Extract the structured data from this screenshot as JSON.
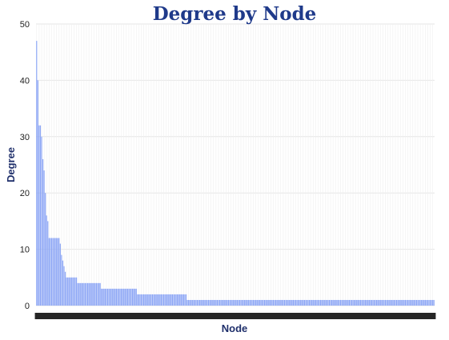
{
  "chart_data": {
    "type": "bar",
    "title": "Degree by Node",
    "xlabel": "Node",
    "ylabel": "Degree",
    "ylim": [
      0,
      50
    ],
    "yticks": [
      0,
      10,
      20,
      30,
      40,
      50
    ],
    "grid": true,
    "legend": "none",
    "bar_color": "#8fa8f5",
    "title_color": "#1f3a8a",
    "axis_label_color": "#1f2f6b",
    "x_ticks_illegible": true,
    "series": [
      {
        "values": [
          47,
          40,
          32,
          32,
          30,
          26,
          24,
          20,
          16,
          15,
          12,
          12,
          12,
          12,
          12,
          12,
          12,
          12,
          12,
          11,
          9,
          8,
          7,
          6,
          5,
          5,
          5,
          5,
          5,
          5,
          5,
          5,
          5,
          4,
          4,
          4,
          4,
          4,
          4,
          4,
          4,
          4,
          4,
          4,
          4,
          4,
          4,
          4,
          4,
          4,
          4,
          4,
          3,
          3,
          3,
          3,
          3,
          3,
          3,
          3,
          3,
          3,
          3,
          3,
          3,
          3,
          3,
          3,
          3,
          3,
          3,
          3,
          3,
          3,
          3,
          3,
          3,
          3,
          3,
          3,
          3,
          2,
          2,
          2,
          2,
          2,
          2,
          2,
          2,
          2,
          2,
          2,
          2,
          2,
          2,
          2,
          2,
          2,
          2,
          2,
          2,
          2,
          2,
          2,
          2,
          2,
          2,
          2,
          2,
          2,
          2,
          2,
          2,
          2,
          2,
          2,
          2,
          2,
          2,
          2,
          2,
          1,
          1,
          1,
          1,
          1,
          1,
          1,
          1,
          1,
          1,
          1,
          1,
          1,
          1,
          1,
          1,
          1,
          1,
          1,
          1,
          1,
          1,
          1,
          1,
          1,
          1,
          1,
          1,
          1,
          1,
          1,
          1,
          1,
          1,
          1,
          1,
          1,
          1,
          1,
          1,
          1,
          1,
          1,
          1,
          1,
          1,
          1,
          1,
          1,
          1,
          1,
          1,
          1,
          1,
          1,
          1,
          1,
          1,
          1,
          1,
          1,
          1,
          1,
          1,
          1,
          1,
          1,
          1,
          1,
          1,
          1,
          1,
          1,
          1,
          1,
          1,
          1,
          1,
          1,
          1,
          1,
          1,
          1,
          1,
          1,
          1,
          1,
          1,
          1,
          1,
          1,
          1,
          1,
          1,
          1,
          1,
          1,
          1,
          1,
          1,
          1,
          1,
          1,
          1,
          1,
          1,
          1,
          1,
          1,
          1,
          1,
          1,
          1,
          1,
          1,
          1,
          1,
          1,
          1,
          1,
          1,
          1,
          1,
          1,
          1,
          1,
          1,
          1,
          1,
          1,
          1,
          1,
          1,
          1,
          1,
          1,
          1,
          1,
          1,
          1,
          1,
          1,
          1,
          1,
          1,
          1,
          1,
          1,
          1,
          1,
          1,
          1,
          1,
          1,
          1,
          1,
          1,
          1,
          1,
          1,
          1,
          1,
          1,
          1,
          1,
          1,
          1,
          1,
          1,
          1,
          1,
          1,
          1,
          1,
          1,
          1,
          1,
          1,
          1,
          1,
          1,
          1,
          1,
          1,
          1,
          1,
          1,
          1,
          1,
          1,
          1,
          1,
          1,
          1,
          1,
          1,
          1,
          1,
          1
        ]
      }
    ]
  }
}
